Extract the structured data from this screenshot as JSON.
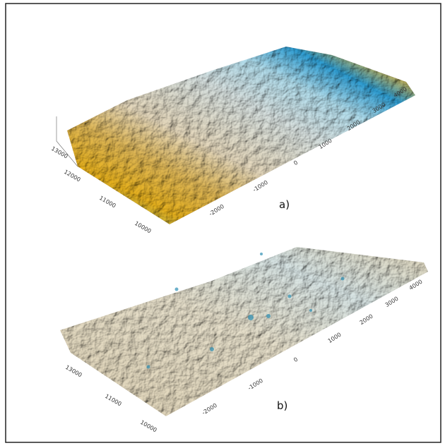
{
  "panels": [
    {
      "label": "a)",
      "y_ticks": [
        "13000",
        "12000",
        "11000",
        "10000"
      ],
      "x_ticks": [
        "-2000",
        "-1000",
        "0",
        "1000",
        "2000",
        "3000",
        "4000"
      ]
    },
    {
      "label": "b)",
      "y_ticks": [
        "13000",
        "11000",
        "10000"
      ],
      "x_ticks": [
        "-2000",
        "-1000",
        "0",
        "1000",
        "2000",
        "3000",
        "4000"
      ]
    }
  ]
}
